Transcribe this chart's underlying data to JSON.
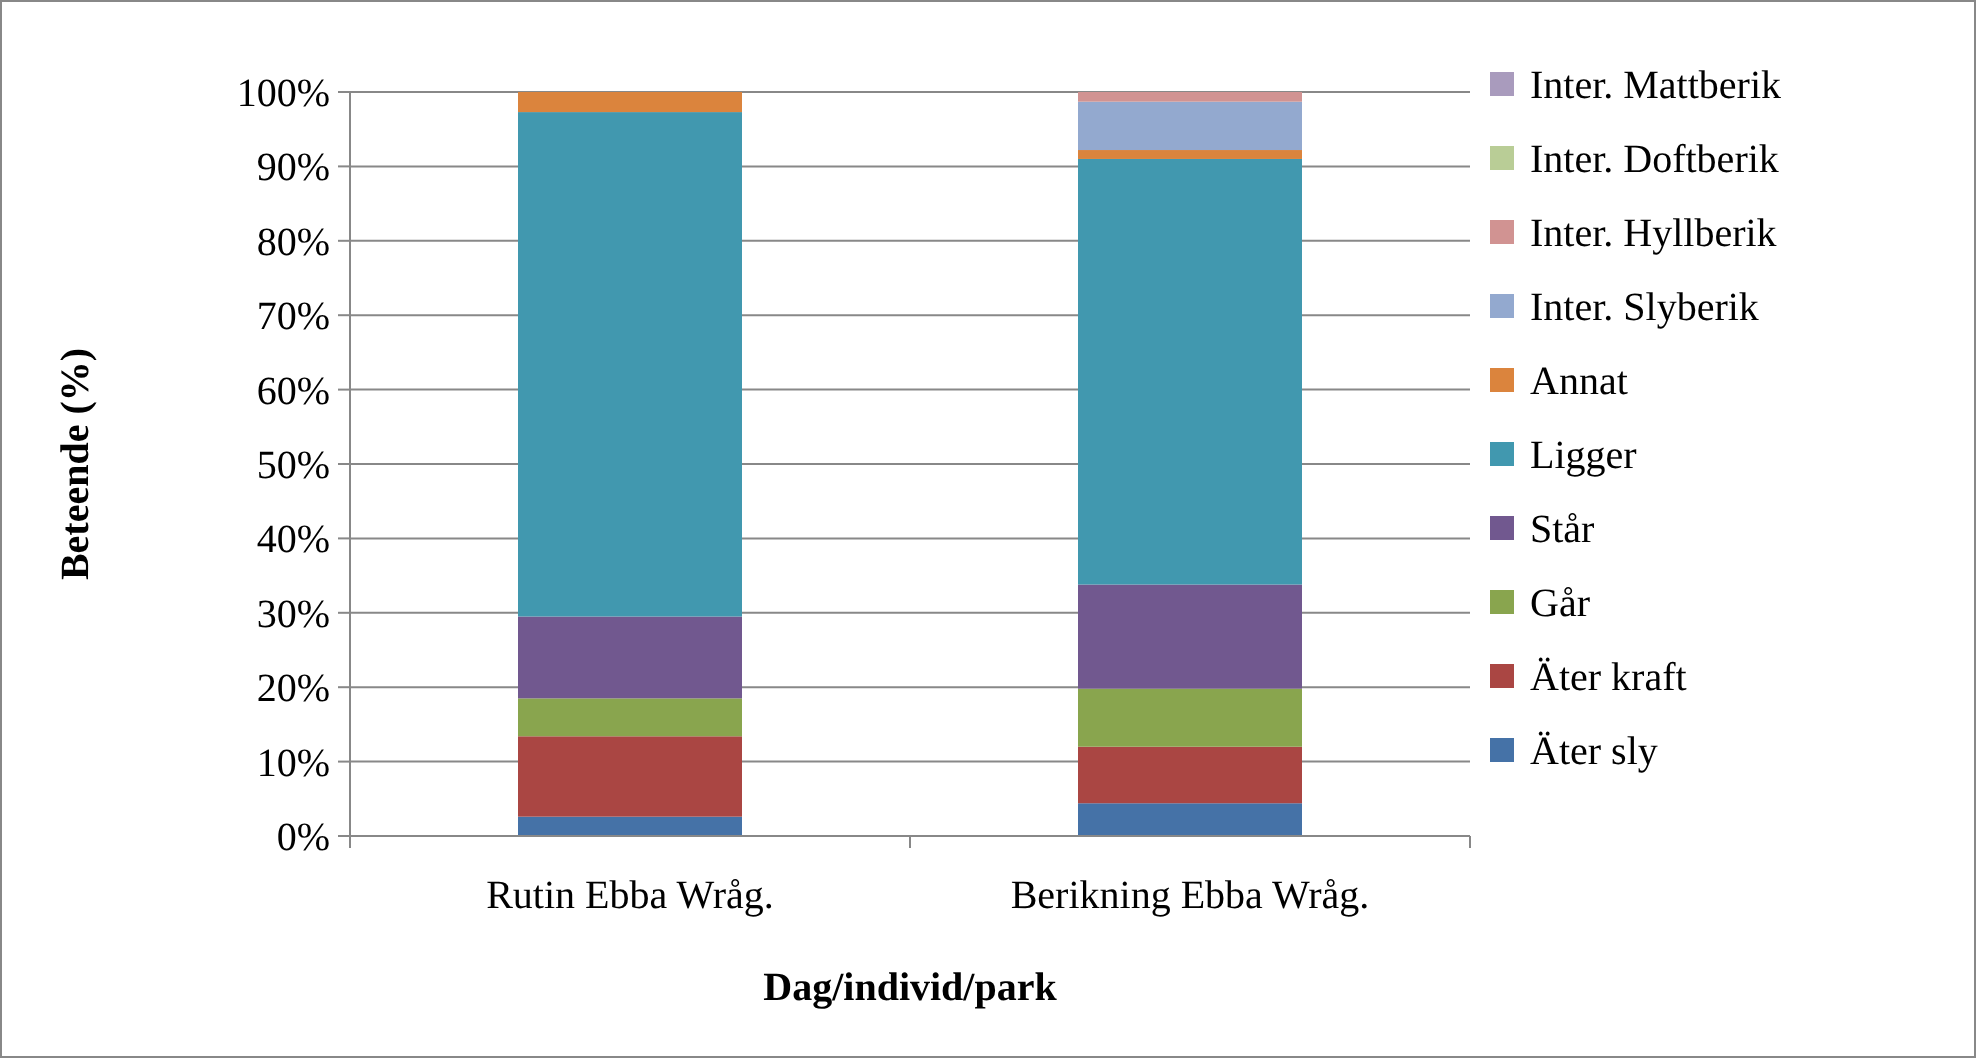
{
  "chart_data": {
    "type": "bar",
    "stacked": true,
    "xlabel": "Dag/individ/park",
    "ylabel": "Beteende (%)",
    "categories": [
      "Rutin Ebba Wråg.",
      "Berikning Ebba Wråg."
    ],
    "ylim": [
      0,
      100
    ],
    "yticks": [
      {
        "value": 0,
        "label": "0%"
      },
      {
        "value": 10,
        "label": "10%"
      },
      {
        "value": 20,
        "label": "20%"
      },
      {
        "value": 30,
        "label": "30%"
      },
      {
        "value": 40,
        "label": "40%"
      },
      {
        "value": 50,
        "label": "50%"
      },
      {
        "value": 60,
        "label": "60%"
      },
      {
        "value": 70,
        "label": "70%"
      },
      {
        "value": 80,
        "label": "80%"
      },
      {
        "value": 90,
        "label": "90%"
      },
      {
        "value": 100,
        "label": "100%"
      }
    ],
    "grid": "y",
    "legend": "right",
    "series": [
      {
        "name": "Äter sly",
        "color": "#4572a7",
        "values": [
          2.6,
          4.4
        ]
      },
      {
        "name": "Äter kraft",
        "color": "#aa4643",
        "values": [
          10.8,
          7.6
        ]
      },
      {
        "name": "Går",
        "color": "#89a54e",
        "values": [
          5.1,
          7.8
        ]
      },
      {
        "name": "Står",
        "color": "#71588f",
        "values": [
          11.0,
          14.0
        ]
      },
      {
        "name": "Ligger",
        "color": "#4198af",
        "values": [
          67.8,
          57.2
        ]
      },
      {
        "name": "Annat",
        "color": "#db843d",
        "values": [
          2.7,
          1.2
        ]
      },
      {
        "name": "Inter. Slyberik",
        "color": "#93a9cf",
        "values": [
          0,
          6.5
        ]
      },
      {
        "name": "Inter. Hyllberik",
        "color": "#d19392",
        "values": [
          0,
          1.3
        ]
      },
      {
        "name": "Inter. Doftberik",
        "color": "#b9cd96",
        "values": [
          0,
          0
        ]
      },
      {
        "name": "Inter. Mattberik",
        "color": "#a99bbd",
        "values": [
          0,
          0
        ]
      }
    ]
  }
}
